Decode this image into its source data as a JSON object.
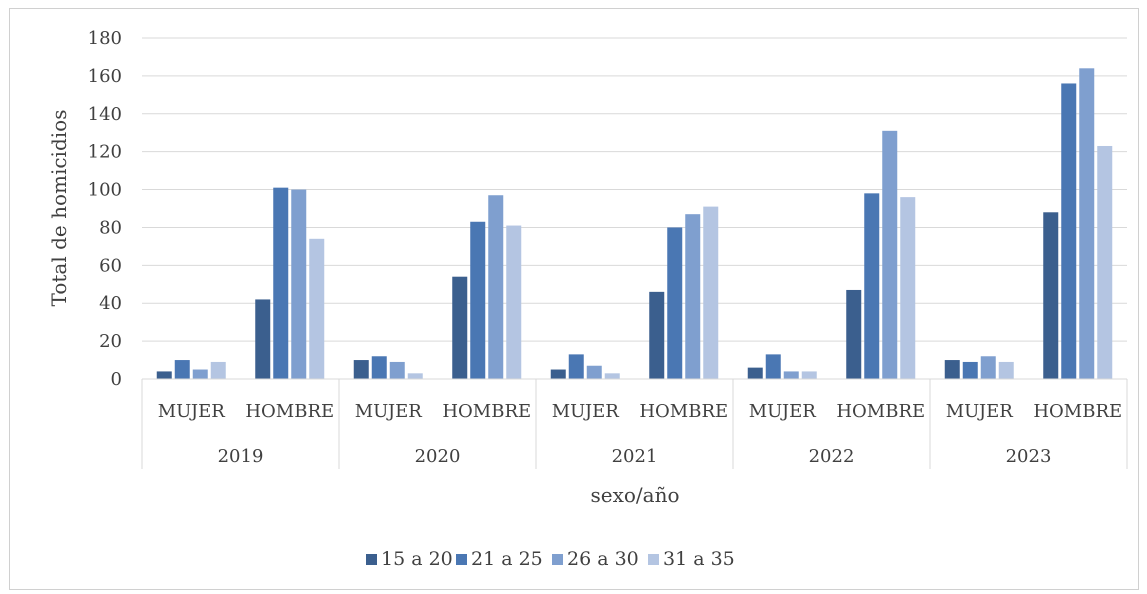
{
  "chart_data": {
    "type": "bar",
    "title": "",
    "xlabel": "sexo/año",
    "ylabel": "Total de homicidios",
    "ylim": [
      0,
      180
    ],
    "yticks": [
      0,
      20,
      40,
      60,
      80,
      100,
      120,
      140,
      160,
      180
    ],
    "grid": true,
    "legend_position": "bottom",
    "groups": [
      "2019",
      "2020",
      "2021",
      "2022",
      "2023"
    ],
    "subcategories": [
      "MUJER",
      "HOMBRE"
    ],
    "categories": [
      "2019 MUJER",
      "2019 HOMBRE",
      "2020 MUJER",
      "2020 HOMBRE",
      "2021 MUJER",
      "2021 HOMBRE",
      "2022 MUJER",
      "2022 HOMBRE",
      "2023 MUJER",
      "2023 HOMBRE"
    ],
    "series": [
      {
        "name": "15 a 20",
        "color": "#3b5f8e",
        "values": [
          4,
          42,
          10,
          54,
          5,
          46,
          6,
          47,
          10,
          88
        ]
      },
      {
        "name": "21 a 25",
        "color": "#4a77b3",
        "values": [
          10,
          101,
          12,
          83,
          13,
          80,
          13,
          98,
          9,
          156
        ]
      },
      {
        "name": "26 a 30",
        "color": "#7f9fcf",
        "values": [
          5,
          100,
          9,
          97,
          7,
          87,
          4,
          131,
          12,
          164
        ]
      },
      {
        "name": "31 a 35",
        "color": "#b4c5e2",
        "values": [
          9,
          74,
          3,
          81,
          3,
          91,
          4,
          96,
          9,
          123
        ]
      }
    ]
  }
}
